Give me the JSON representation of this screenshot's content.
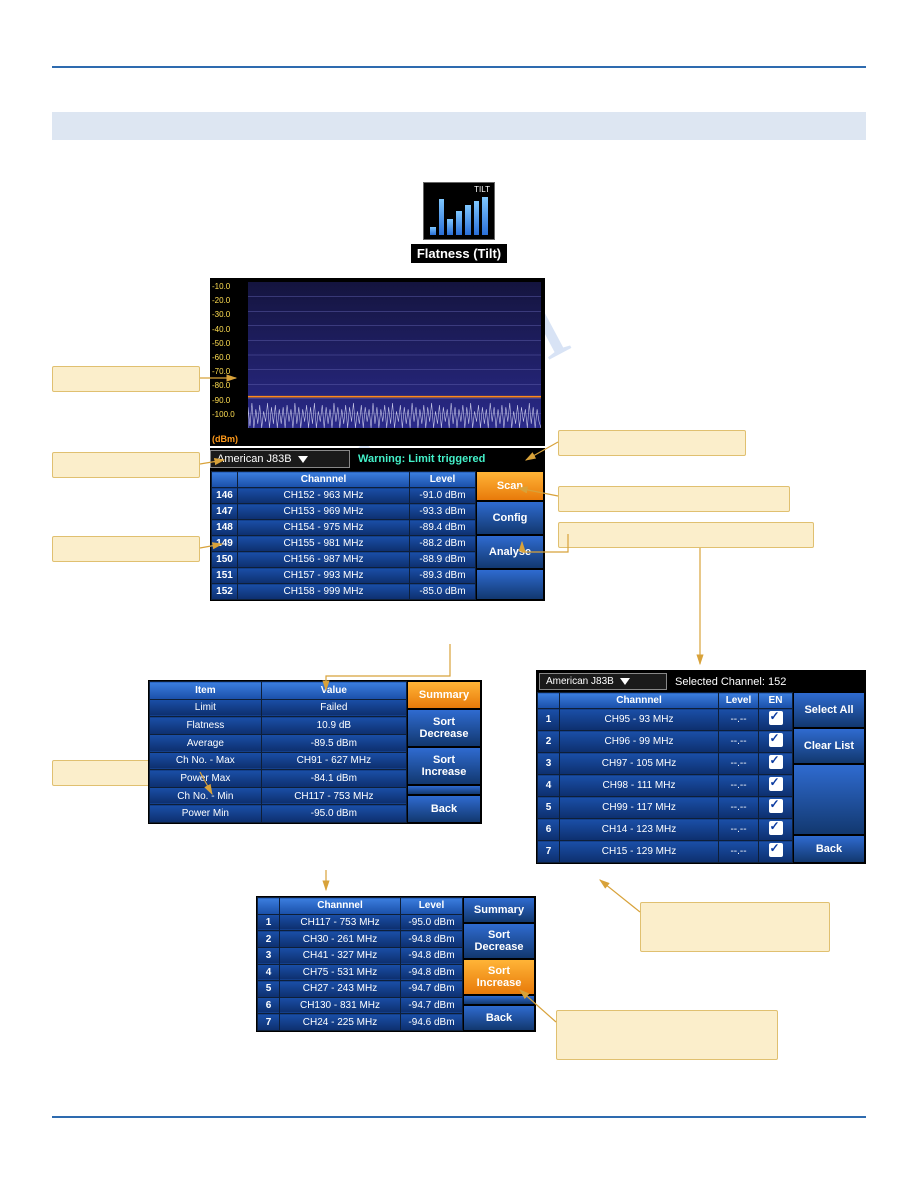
{
  "icon": {
    "title": "TILT",
    "caption": "Flatness (Tilt)"
  },
  "spectrum": {
    "yticks": [
      "-10.0",
      "-20.0",
      "-30.0",
      "-40.0",
      "-50.0",
      "-60.0",
      "-70.0",
      "-80.0",
      "-90.0",
      "-100.0"
    ],
    "unit": "(dBm)",
    "bg_top": "#14143e",
    "bg_bot": "#2a2a8a",
    "level_line_y": 0.78,
    "level_line_color": "#ff8a1a",
    "grid_color": "#5b5ba8"
  },
  "main": {
    "plan": "American J83B",
    "warning": "Warning: Limit triggered",
    "headers": {
      "ch": "Channnel",
      "lvl": "Level"
    },
    "rows": [
      {
        "n": "146",
        "ch": "CH152 - 963 MHz",
        "lvl": "-91.0 dBm"
      },
      {
        "n": "147",
        "ch": "CH153 - 969 MHz",
        "lvl": "-93.3 dBm"
      },
      {
        "n": "148",
        "ch": "CH154 - 975 MHz",
        "lvl": "-89.4 dBm"
      },
      {
        "n": "149",
        "ch": "CH155 - 981 MHz",
        "lvl": "-88.2 dBm"
      },
      {
        "n": "150",
        "ch": "CH156 - 987 MHz",
        "lvl": "-88.9 dBm"
      },
      {
        "n": "151",
        "ch": "CH157 - 993 MHz",
        "lvl": "-89.3 dBm"
      },
      {
        "n": "152",
        "ch": "CH158 - 999 MHz",
        "lvl": "-85.0 dBm"
      }
    ],
    "buttons": {
      "scan": "Scan",
      "config": "Config",
      "analyse": "Analyse"
    }
  },
  "summary": {
    "headers": {
      "item": "Item",
      "value": "Value"
    },
    "rows": [
      {
        "k": "Limit",
        "v": "Failed"
      },
      {
        "k": "Flatness",
        "v": "10.9 dB"
      },
      {
        "k": "Average",
        "v": "-89.5 dBm"
      },
      {
        "k": "Ch No. - Max",
        "v": "CH91 - 627 MHz"
      },
      {
        "k": "Power Max",
        "v": "-84.1 dBm"
      },
      {
        "k": "Ch No. - Min",
        "v": "CH117 - 753 MHz"
      },
      {
        "k": "Power Min",
        "v": "-95.0 dBm"
      }
    ],
    "buttons": {
      "summary": "Summary",
      "dec": "Sort\nDecrease",
      "inc": "Sort\nIncrease",
      "back": "Back"
    }
  },
  "sorted": {
    "headers": {
      "ch": "Channnel",
      "lvl": "Level"
    },
    "rows": [
      {
        "n": "1",
        "ch": "CH117 - 753 MHz",
        "lvl": "-95.0 dBm"
      },
      {
        "n": "2",
        "ch": "CH30 - 261 MHz",
        "lvl": "-94.8 dBm"
      },
      {
        "n": "3",
        "ch": "CH41 - 327 MHz",
        "lvl": "-94.8 dBm"
      },
      {
        "n": "4",
        "ch": "CH75 - 531 MHz",
        "lvl": "-94.8 dBm"
      },
      {
        "n": "5",
        "ch": "CH27 - 243 MHz",
        "lvl": "-94.7 dBm"
      },
      {
        "n": "6",
        "ch": "CH130 - 831 MHz",
        "lvl": "-94.7 dBm"
      },
      {
        "n": "7",
        "ch": "CH24 - 225 MHz",
        "lvl": "-94.6 dBm"
      }
    ],
    "buttons": {
      "summary": "Summary",
      "dec": "Sort\nDecrease",
      "inc": "Sort\nIncrease",
      "back": "Back"
    }
  },
  "config": {
    "plan": "American J83B",
    "selected_label": "Selected Channel: 152",
    "headers": {
      "ch": "Channnel",
      "lvl": "Level",
      "en": "EN"
    },
    "rows": [
      {
        "n": "1",
        "ch": "CH95 - 93 MHz",
        "lvl": "--.--"
      },
      {
        "n": "2",
        "ch": "CH96 - 99 MHz",
        "lvl": "--.--"
      },
      {
        "n": "3",
        "ch": "CH97 - 105 MHz",
        "lvl": "--.--"
      },
      {
        "n": "4",
        "ch": "CH98 - 111 MHz",
        "lvl": "--.--"
      },
      {
        "n": "5",
        "ch": "CH99 - 117 MHz",
        "lvl": "--.--"
      },
      {
        "n": "6",
        "ch": "CH14 - 123 MHz",
        "lvl": "--.--"
      },
      {
        "n": "7",
        "ch": "CH15 - 129 MHz",
        "lvl": "--.--"
      }
    ],
    "buttons": {
      "selall": "Select All",
      "clear": "Clear List",
      "back": "Back"
    }
  },
  "colors": {
    "callout_bg": "#fbeecb",
    "callout_border": "#e0c070",
    "arrow": "#d8a23a",
    "btn_blue_top": "#2f6bd0",
    "btn_blue_bot": "#12386f",
    "btn_orange_top": "#ffb437",
    "btn_orange_bot": "#e87a0a"
  }
}
